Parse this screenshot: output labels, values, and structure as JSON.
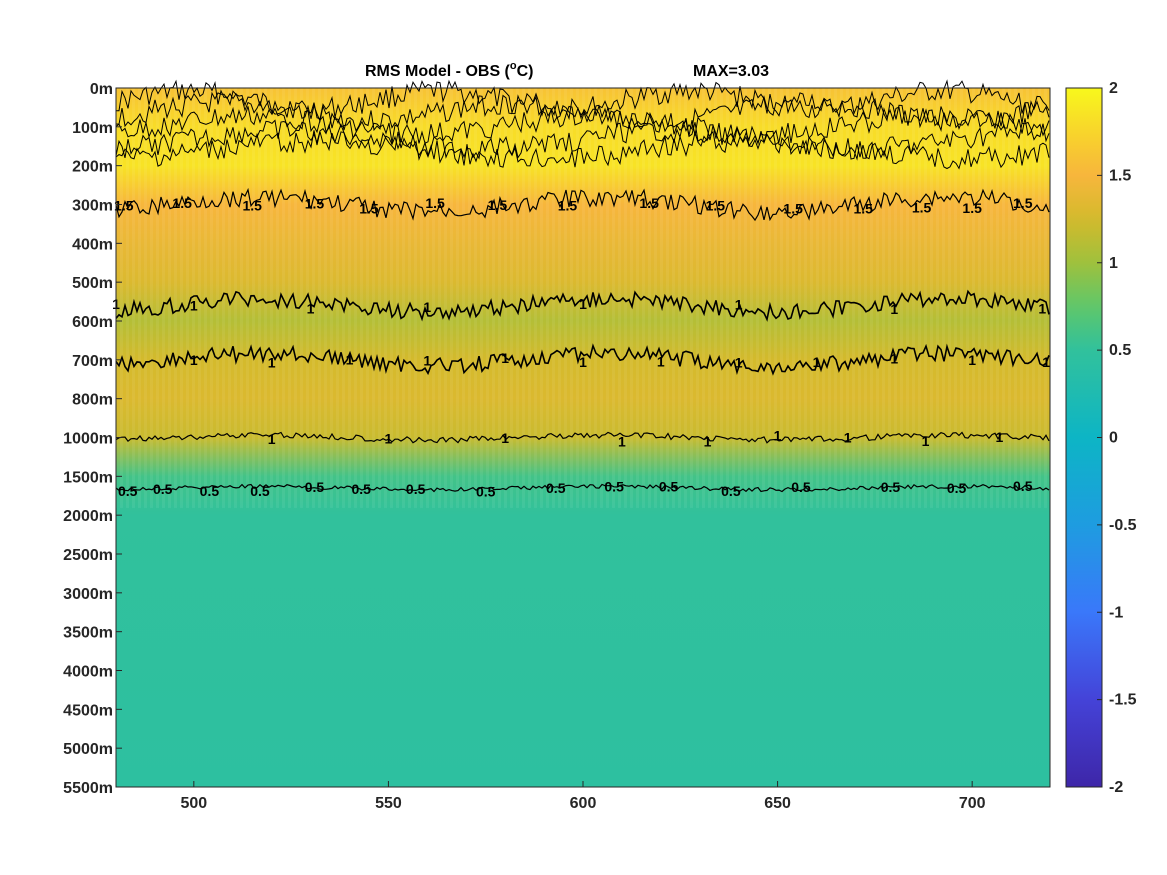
{
  "chart_data": {
    "type": "heatmap",
    "title": "RMS Model - OBS (",
    "title_sup": "o",
    "title_unit": "C)",
    "max_label": "MAX=3.03",
    "xlabel": "",
    "ylabel": "",
    "xlim": [
      480,
      720
    ],
    "x_ticks": [
      500,
      550,
      600,
      650,
      700
    ],
    "y_tick_labels": [
      "0m",
      "100m",
      "200m",
      "300m",
      "400m",
      "500m",
      "600m",
      "700m",
      "800m",
      "1000m",
      "1500m",
      "2000m",
      "2500m",
      "3000m",
      "3500m",
      "4000m",
      "4500m",
      "5000m",
      "5500m"
    ],
    "colorbar": {
      "colormap": "parula",
      "clim": [
        -2,
        2
      ],
      "ticks": [
        "2",
        "1.5",
        "1",
        "0.5",
        "0",
        "-0.5",
        "-1",
        "-1.5",
        "-2"
      ]
    },
    "depth_profile": [
      {
        "depth": "0m",
        "value": 1.6
      },
      {
        "depth": "100m",
        "value": 1.8
      },
      {
        "depth": "200m",
        "value": 1.85
      },
      {
        "depth": "300m",
        "value": 1.5
      },
      {
        "depth": "400m",
        "value": 1.4
      },
      {
        "depth": "500m",
        "value": 1.3
      },
      {
        "depth": "600m",
        "value": 1.1
      },
      {
        "depth": "700m",
        "value": 1.25
      },
      {
        "depth": "800m",
        "value": 1.3
      },
      {
        "depth": "1000m",
        "value": 1.2
      },
      {
        "depth": "1500m",
        "value": 0.6
      },
      {
        "depth": "2000m",
        "value": 0.5
      },
      {
        "depth": "5500m",
        "value": 0.45
      }
    ],
    "contours": [
      {
        "level": "1.5",
        "depth": "300m",
        "label_positions": [
          482,
          497,
          515,
          531,
          545,
          562,
          578,
          596,
          617,
          634,
          654,
          672,
          687,
          700,
          713
        ]
      },
      {
        "level": "1",
        "depth": "560m",
        "label_positions": [
          480,
          500,
          530,
          560,
          600,
          640,
          680,
          718
        ]
      },
      {
        "level": "1",
        "depth": "700m",
        "label_positions": [
          500,
          520,
          540,
          560,
          580,
          600,
          620,
          640,
          660,
          680,
          700,
          719
        ]
      },
      {
        "level": "1",
        "depth": "1000m",
        "label_positions": [
          520,
          550,
          580,
          610,
          632,
          650,
          668,
          688,
          707
        ]
      },
      {
        "level": "0.5",
        "depth": "1650m",
        "label_positions": [
          483,
          492,
          504,
          517,
          531,
          543,
          557,
          575,
          593,
          608,
          622,
          638,
          656,
          679,
          696,
          713
        ]
      }
    ]
  }
}
